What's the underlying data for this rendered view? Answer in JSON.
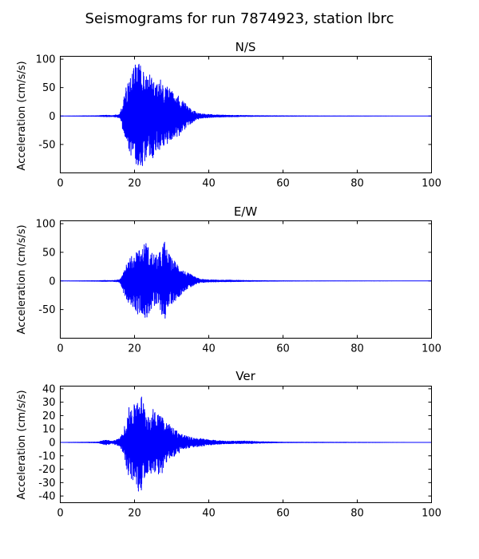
{
  "figure_title": "Seismograms for run 7874923, station lbrc",
  "chart_data": [
    {
      "type": "line",
      "title": "N/S",
      "xlabel": "",
      "ylabel": "Acceleration (cm/s/s)",
      "xlim": [
        0,
        100
      ],
      "ylim": [
        -100,
        105
      ],
      "xticks": [
        0,
        20,
        40,
        60,
        80,
        100
      ],
      "yticks": [
        -50,
        0,
        50,
        100
      ],
      "grid": false,
      "color": "#0000ff",
      "envelope": [
        [
          0,
          0
        ],
        [
          10,
          0.5
        ],
        [
          12,
          1.5
        ],
        [
          14,
          1
        ],
        [
          16,
          3
        ],
        [
          17,
          30
        ],
        [
          18,
          58
        ],
        [
          19,
          70
        ],
        [
          20,
          88
        ],
        [
          21,
          97
        ],
        [
          22,
          90
        ],
        [
          23,
          80
        ],
        [
          24,
          85
        ],
        [
          25,
          75
        ],
        [
          26,
          55
        ],
        [
          27,
          65
        ],
        [
          28,
          55
        ],
        [
          29,
          50
        ],
        [
          30,
          45
        ],
        [
          31,
          40
        ],
        [
          32,
          35
        ],
        [
          33,
          28
        ],
        [
          34,
          20
        ],
        [
          35,
          14
        ],
        [
          36,
          10
        ],
        [
          37,
          6
        ],
        [
          38,
          4
        ],
        [
          40,
          3
        ],
        [
          42,
          2
        ],
        [
          45,
          1.5
        ],
        [
          50,
          1
        ],
        [
          55,
          0.6
        ],
        [
          60,
          0.4
        ],
        [
          70,
          0.2
        ],
        [
          100,
          0
        ]
      ]
    },
    {
      "type": "line",
      "title": "E/W",
      "xlabel": "",
      "ylabel": "Acceleration (cm/s/s)",
      "xlim": [
        0,
        100
      ],
      "ylim": [
        -100,
        105
      ],
      "xticks": [
        0,
        20,
        40,
        60,
        80,
        100
      ],
      "yticks": [
        -50,
        0,
        50,
        100
      ],
      "grid": false,
      "color": "#0000ff",
      "envelope": [
        [
          0,
          0
        ],
        [
          10,
          0.5
        ],
        [
          12,
          1
        ],
        [
          14,
          0.8
        ],
        [
          16,
          2
        ],
        [
          17,
          20
        ],
        [
          18,
          35
        ],
        [
          19,
          42
        ],
        [
          20,
          48
        ],
        [
          21,
          60
        ],
        [
          22,
          55
        ],
        [
          23,
          72
        ],
        [
          24,
          55
        ],
        [
          25,
          50
        ],
        [
          26,
          45
        ],
        [
          27,
          52
        ],
        [
          28,
          72
        ],
        [
          29,
          50
        ],
        [
          30,
          40
        ],
        [
          31,
          35
        ],
        [
          32,
          28
        ],
        [
          33,
          20
        ],
        [
          34,
          15
        ],
        [
          35,
          12
        ],
        [
          36,
          8
        ],
        [
          37,
          5
        ],
        [
          38,
          3
        ],
        [
          40,
          2
        ],
        [
          43,
          1.5
        ],
        [
          46,
          1.5
        ],
        [
          50,
          0.8
        ],
        [
          60,
          0.3
        ],
        [
          70,
          0.1
        ],
        [
          100,
          0
        ]
      ]
    },
    {
      "type": "line",
      "title": "Ver",
      "xlabel": "",
      "ylabel": "Acceleration (cm/s/s)",
      "xlim": [
        0,
        100
      ],
      "ylim": [
        -45,
        42
      ],
      "xticks": [
        0,
        20,
        40,
        60,
        80,
        100
      ],
      "yticks": [
        -40,
        -30,
        -20,
        -10,
        0,
        10,
        20,
        30,
        40
      ],
      "grid": false,
      "color": "#0000ff",
      "envelope": [
        [
          0,
          0
        ],
        [
          10,
          0.3
        ],
        [
          11,
          1
        ],
        [
          12,
          2
        ],
        [
          13,
          1.5
        ],
        [
          14,
          1
        ],
        [
          15,
          2
        ],
        [
          16,
          3
        ],
        [
          17,
          8
        ],
        [
          18,
          22
        ],
        [
          19,
          30
        ],
        [
          20,
          28
        ],
        [
          21,
          38
        ],
        [
          22,
          35
        ],
        [
          23,
          25
        ],
        [
          24,
          22
        ],
        [
          25,
          25
        ],
        [
          26,
          20
        ],
        [
          27,
          28
        ],
        [
          28,
          18
        ],
        [
          29,
          15
        ],
        [
          30,
          12
        ],
        [
          31,
          10
        ],
        [
          32,
          8
        ],
        [
          33,
          6
        ],
        [
          34,
          5
        ],
        [
          35,
          4
        ],
        [
          36,
          3.5
        ],
        [
          38,
          3
        ],
        [
          40,
          2
        ],
        [
          42,
          1.5
        ],
        [
          45,
          1
        ],
        [
          48,
          1
        ],
        [
          50,
          1
        ],
        [
          52,
          0.8
        ],
        [
          55,
          0.5
        ],
        [
          60,
          0.2
        ],
        [
          100,
          0
        ]
      ]
    }
  ]
}
